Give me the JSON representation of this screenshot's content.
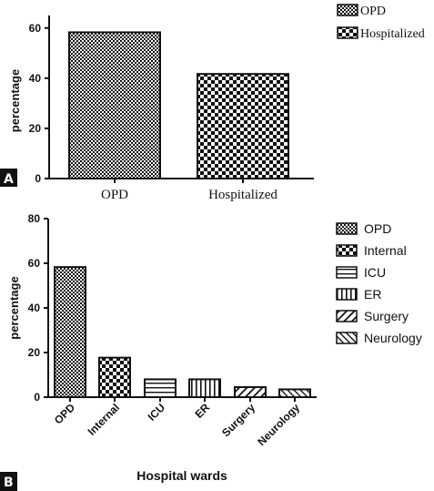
{
  "panels": {
    "a": {
      "label": "A"
    },
    "b": {
      "label": "B"
    }
  },
  "chart_data": [
    {
      "type": "bar",
      "title": "",
      "xlabel": "",
      "ylabel": "percentage",
      "categories": [
        "OPD",
        "Hospitalized"
      ],
      "values": [
        58.3,
        41.7
      ],
      "ylim": [
        0,
        65
      ],
      "yticks": [
        0,
        20,
        40,
        60
      ],
      "legend": {
        "placement": "top-right",
        "entries": [
          "OPD",
          "Hospitalized"
        ]
      },
      "grid": false
    },
    {
      "type": "bar",
      "title": "",
      "xlabel": "Hospital wards",
      "ylabel": "percentage",
      "categories": [
        "OPD",
        "Internal",
        "ICU",
        "ER",
        "Surgery",
        "Neurology"
      ],
      "values": [
        58.3,
        17.7,
        8.0,
        8.0,
        4.5,
        3.5
      ],
      "ylim": [
        0,
        80
      ],
      "yticks": [
        0,
        20,
        40,
        60,
        80
      ],
      "legend": {
        "placement": "right",
        "entries": [
          "OPD",
          "Internal",
          "ICU",
          "ER",
          "Surgery",
          "Neurology"
        ]
      },
      "grid": false
    }
  ]
}
